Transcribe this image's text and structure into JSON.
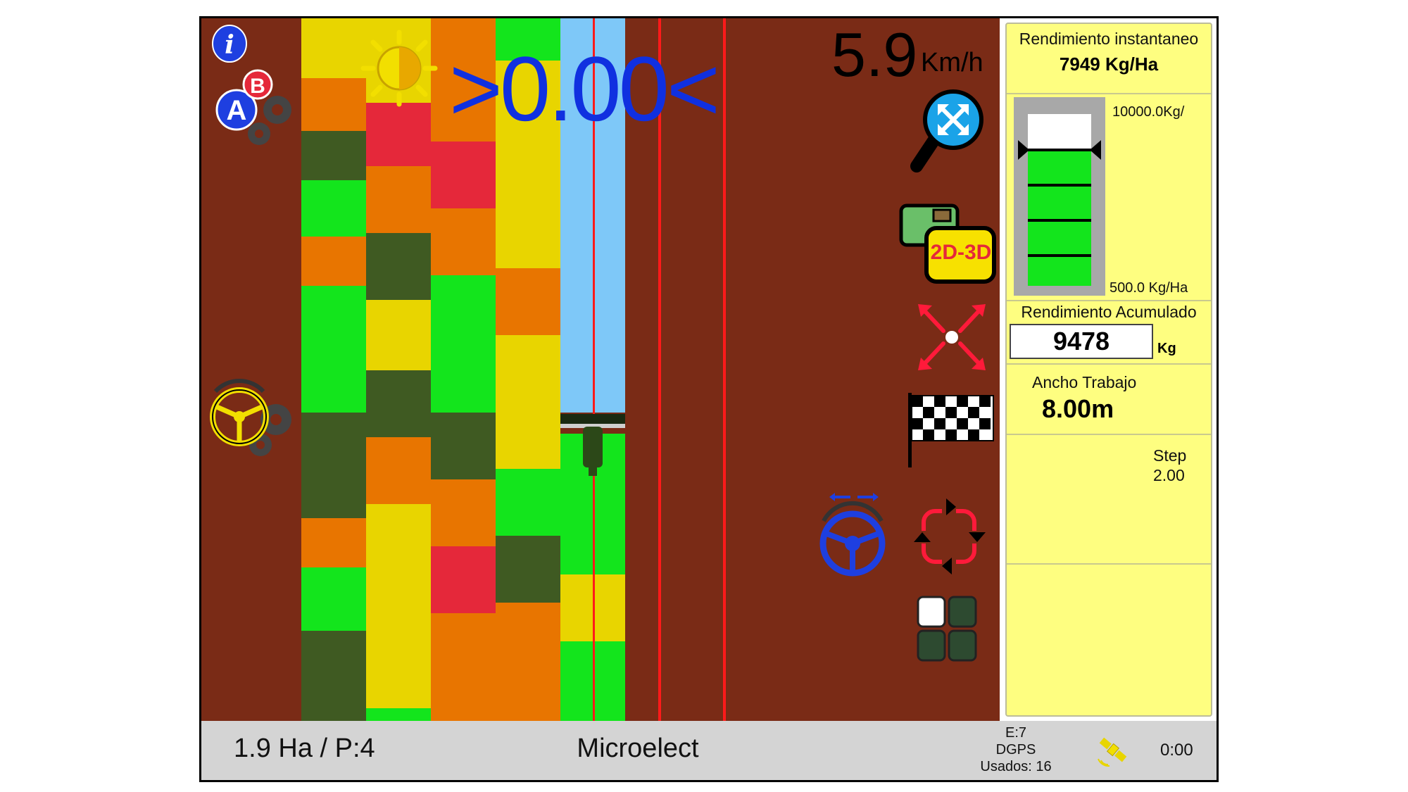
{
  "speed": {
    "value": "5.9",
    "unit": "Km/h"
  },
  "offset_readout": ">0.00<",
  "panel": {
    "instant_title": "Rendimiento instantaneo",
    "instant_value": "7949 Kg/Ha",
    "gauge_max": "10000.0Kg/",
    "gauge_min": "500.0 Kg/Ha",
    "gauge_level": 0.79,
    "accum_title": "Rendimiento Acumulado",
    "accum_value": "9478",
    "accum_unit": "Kg",
    "width_title": "Ancho Trabajo",
    "width_value": "8.00m",
    "step_label": "Step",
    "step_value": "2.00"
  },
  "status": {
    "area": "1.9 Ha / P:4",
    "brand": "Microelect",
    "gps_e": "E:7",
    "gps_mode": "DGPS",
    "gps_used": "Usados: 16",
    "time": "0:00"
  },
  "buttons": {
    "view_toggle": "2D-3D",
    "ab_a": "A",
    "ab_b": "B",
    "info": "i"
  },
  "colors": {
    "soil": "#7a2b16",
    "green_bright": "#13e51c",
    "green_dark": "#3f5a22",
    "yellow": "#e8d500",
    "orange": "#e87500",
    "red": "#e5283a",
    "sky": "#7ec8f8",
    "panel": "#fefe80",
    "status_bar": "#d4d4d4",
    "readout_blue": "#1030e0"
  }
}
